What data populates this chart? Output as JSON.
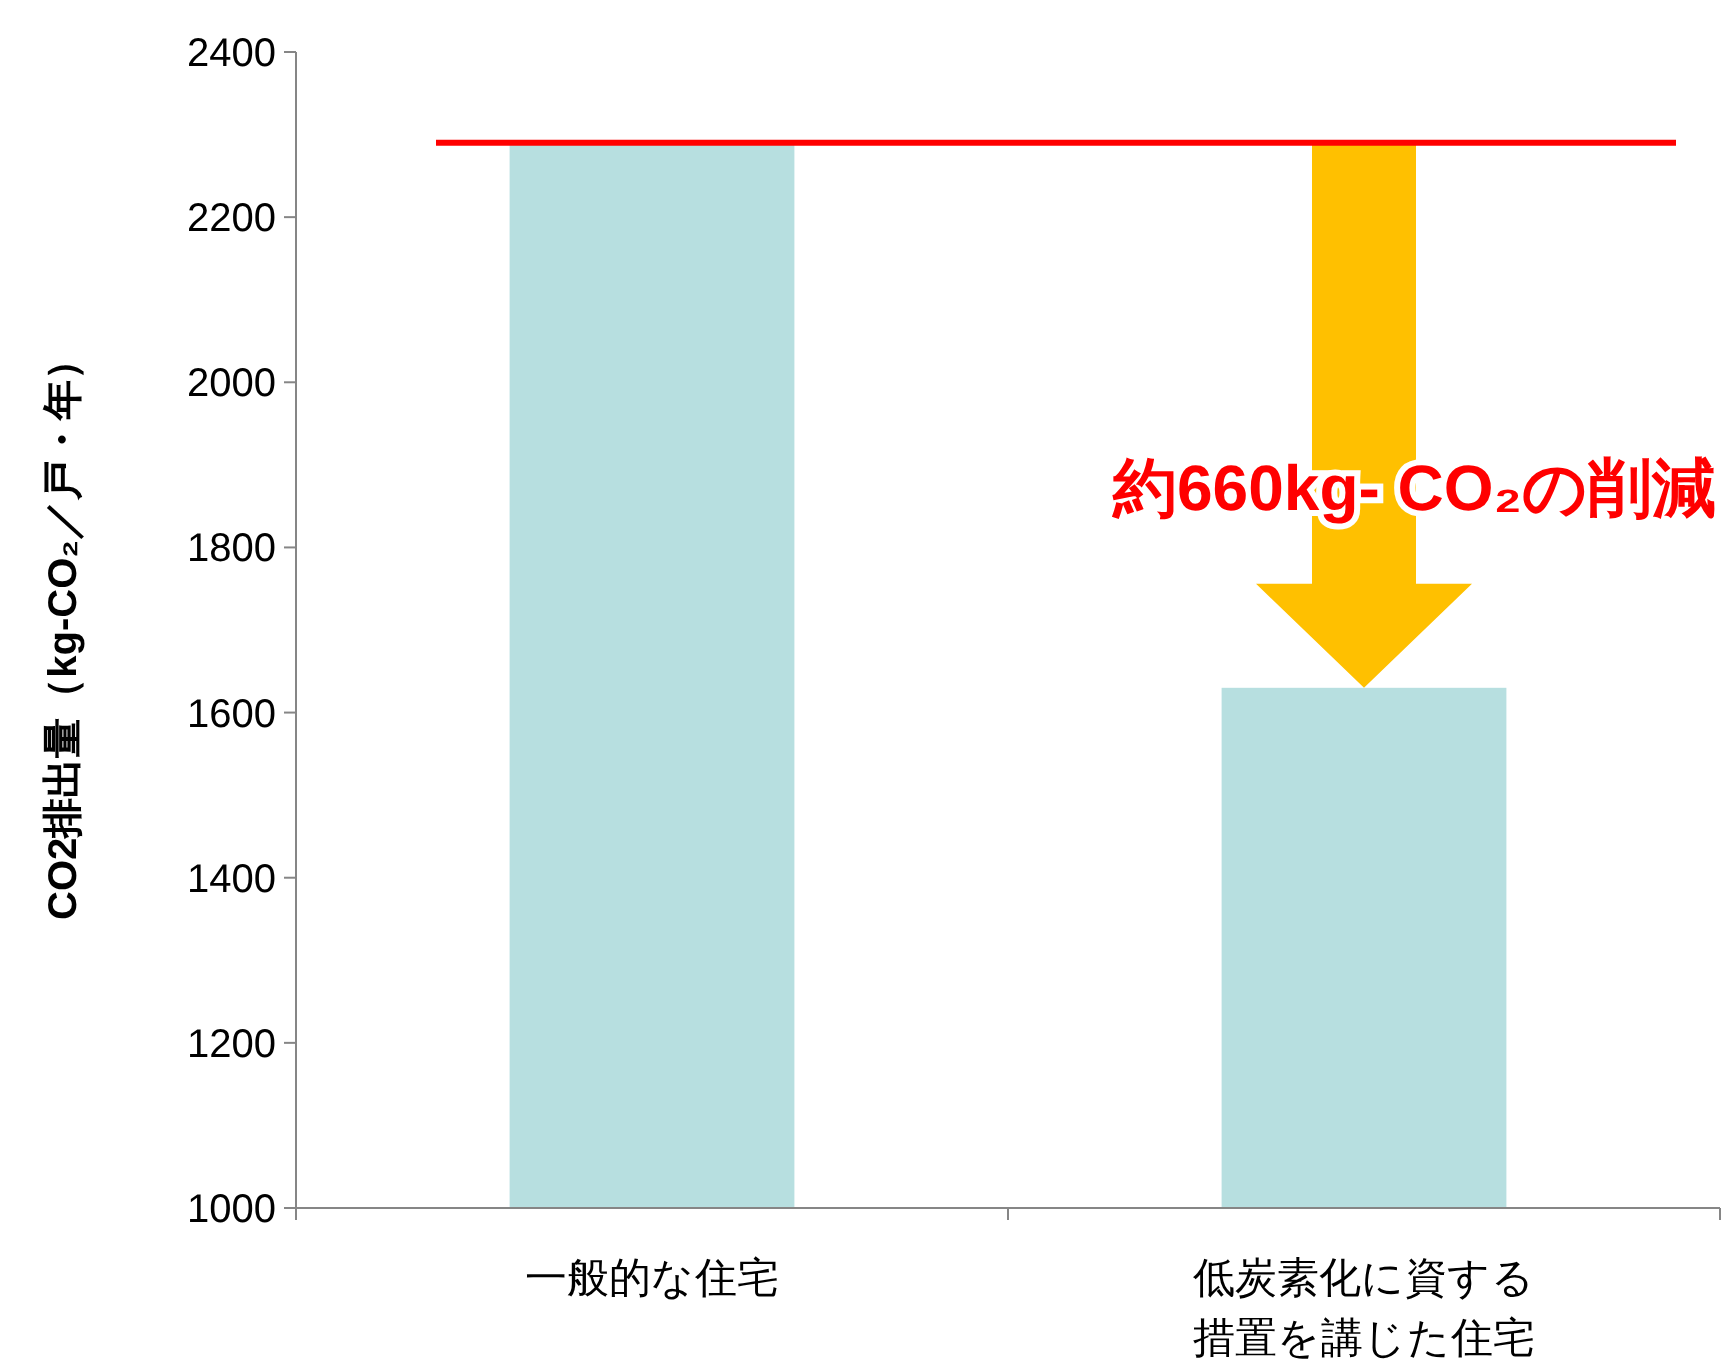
{
  "chart_data": {
    "type": "bar",
    "ylabel": "CO2排出量（kg-CO₂／戸・年）",
    "categories": [
      "一般的な住宅",
      "低炭素化に資する措置を講じた住宅"
    ],
    "values": [
      2290,
      1630
    ],
    "color": "#b7dfe0",
    "ylim": [
      1000,
      2400
    ],
    "yticks": [
      1000,
      1200,
      1400,
      1600,
      1800,
      2000,
      2200,
      2400
    ],
    "grid": false,
    "ref_lines": [
      {
        "axis": "y",
        "value": 2290,
        "color": "#ff0000"
      }
    ],
    "annotations": [
      "約660kg- CO₂の削減"
    ]
  }
}
